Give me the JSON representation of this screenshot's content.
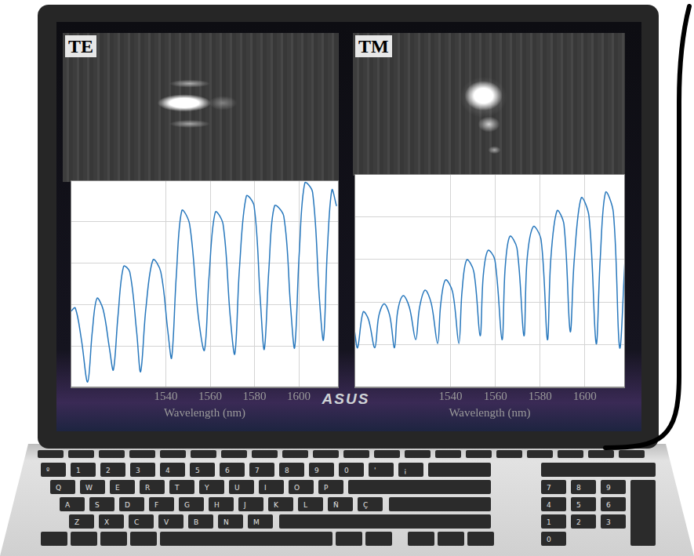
{
  "laptop": {
    "logo": "ASUS",
    "keyboard": {
      "rows": [
        [
          "º",
          "1",
          "2",
          "3",
          "4",
          "5",
          "6",
          "7",
          "8",
          "9",
          "0",
          "'",
          "¡"
        ],
        [
          "Q",
          "W",
          "E",
          "R",
          "T",
          "Y",
          "U",
          "I",
          "O",
          "P"
        ],
        [
          "A",
          "S",
          "D",
          "F",
          "G",
          "H",
          "J",
          "K",
          "L",
          "Ñ",
          "Ç"
        ],
        [
          "Z",
          "X",
          "C",
          "V",
          "B",
          "N",
          "M"
        ]
      ],
      "numpad": [
        "7",
        "8",
        "9",
        "4",
        "5",
        "6",
        "1",
        "2",
        "3",
        "0"
      ]
    }
  },
  "chart_data": [
    {
      "type": "line",
      "title": "TE",
      "xlabel": "Wavelength (nm)",
      "color": "#2878bd",
      "x": [
        1497.0,
        1499.1,
        1501.9,
        1504.7,
        1506.8,
        1508.9,
        1511.7,
        1514.5,
        1516.3,
        1518.4,
        1520.9,
        1523.7,
        1526.8,
        1528.6,
        1531.0,
        1534.2,
        1537.7,
        1540.9,
        1542.6,
        1544.7,
        1547.2,
        1550.7,
        1554.6,
        1557.4,
        1559.5,
        1562.3,
        1565.8,
        1569.0,
        1571.1,
        1573.2,
        1576.3,
        1579.8,
        1582.6,
        1584.4,
        1586.5,
        1589.0,
        1593.2,
        1596.3,
        1598.1,
        1600.2,
        1602.7,
        1606.2,
        1609.3,
        1611.1,
        1612.8,
        1614.9,
        1617.0
      ],
      "values": [
        1.83,
        1.92,
        1.15,
        0.13,
        1.35,
        2.15,
        1.88,
        0.96,
        0.42,
        1.73,
        2.92,
        2.79,
        1.35,
        0.38,
        1.92,
        3.08,
        2.79,
        1.35,
        0.71,
        2.69,
        4.27,
        3.94,
        1.73,
        0.9,
        2.69,
        4.23,
        3.94,
        1.73,
        0.81,
        2.88,
        4.62,
        4.38,
        2.12,
        0.92,
        2.88,
        4.38,
        4.13,
        1.92,
        0.96,
        3.27,
        4.94,
        4.71,
        2.12,
        1.15,
        3.27,
        4.77,
        4.38
      ],
      "xlim": [
        1497,
        1618
      ],
      "xticks": [
        1540,
        1560,
        1580,
        1600
      ],
      "ylim": [
        0,
        5
      ],
      "yticks": [
        1,
        2,
        3,
        4
      ],
      "grid": true,
      "tick_labels": "x"
    },
    {
      "type": "line",
      "title": "TM",
      "xlabel": "Wavelength (nm)",
      "color": "#2878bd",
      "x": [
        1497.0,
        1498.4,
        1500.9,
        1503.3,
        1506.1,
        1507.9,
        1510.3,
        1512.8,
        1514.9,
        1516.3,
        1518.8,
        1521.6,
        1524.4,
        1526.1,
        1528.6,
        1531.4,
        1534.2,
        1535.6,
        1537.7,
        1540.9,
        1543.7,
        1545.1,
        1547.2,
        1550.4,
        1553.2,
        1554.6,
        1556.7,
        1559.8,
        1563.0,
        1564.4,
        1566.5,
        1569.7,
        1572.8,
        1574.2,
        1577.0,
        1580.5,
        1583.3,
        1584.8,
        1587.6,
        1590.7,
        1593.5,
        1595.3,
        1598.4,
        1601.9,
        1605.1,
        1606.9,
        1609.3,
        1612.8,
        1615.6,
        1618.0
      ],
      "values": [
        1.34,
        0.93,
        1.77,
        1.59,
        0.93,
        1.68,
        1.96,
        1.68,
        0.93,
        1.77,
        2.15,
        1.87,
        1.12,
        1.87,
        2.28,
        1.96,
        1.03,
        1.96,
        2.52,
        2.24,
        1.03,
        2.24,
        2.99,
        2.71,
        1.21,
        2.61,
        3.21,
        2.99,
        1.12,
        2.8,
        3.54,
        3.26,
        1.21,
        2.99,
        3.77,
        3.45,
        1.12,
        2.99,
        4.14,
        3.82,
        1.31,
        2.99,
        4.44,
        4.01,
        1.03,
        2.99,
        4.57,
        4.1,
        0.93,
        2.99
      ],
      "xlim": [
        1497,
        1618
      ],
      "xticks": [
        1540,
        1560,
        1580,
        1600
      ],
      "ylim": [
        0,
        5
      ],
      "yticks": [
        1,
        2,
        3,
        4
      ],
      "grid": true,
      "tick_labels": "x"
    }
  ]
}
